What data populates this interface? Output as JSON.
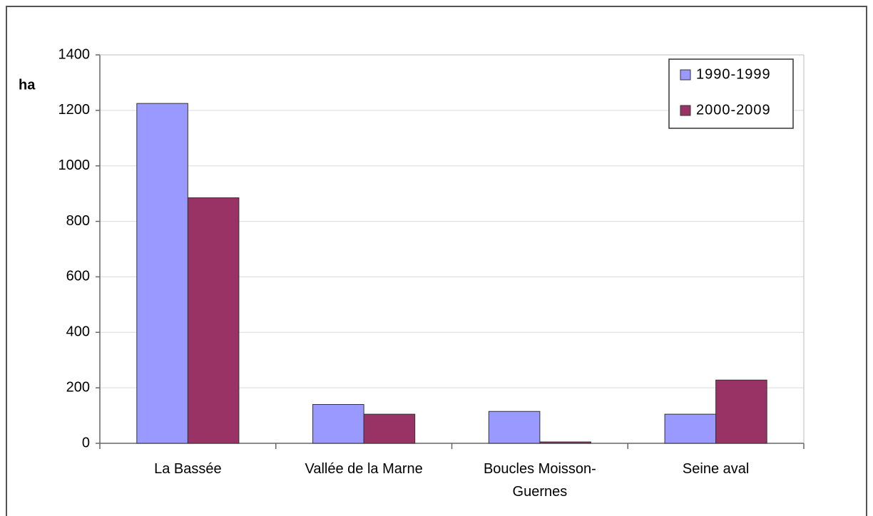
{
  "chart_data": {
    "type": "bar",
    "y_label": "ha",
    "categories": [
      "La Bassée",
      "Vallée de la Marne",
      "Boucles Moisson-Guernes",
      "Seine aval"
    ],
    "series": [
      {
        "name": "1990-1999",
        "color": "#9999ff",
        "values": [
          1225,
          140,
          115,
          105
        ]
      },
      {
        "name": "2000-2009",
        "color": "#993366",
        "values": [
          885,
          105,
          5,
          228
        ]
      }
    ],
    "ylim": [
      0,
      1400
    ],
    "yticks": [
      0,
      200,
      400,
      600,
      800,
      1000,
      1200,
      1400
    ],
    "grid": true,
    "legend": "top-right"
  }
}
